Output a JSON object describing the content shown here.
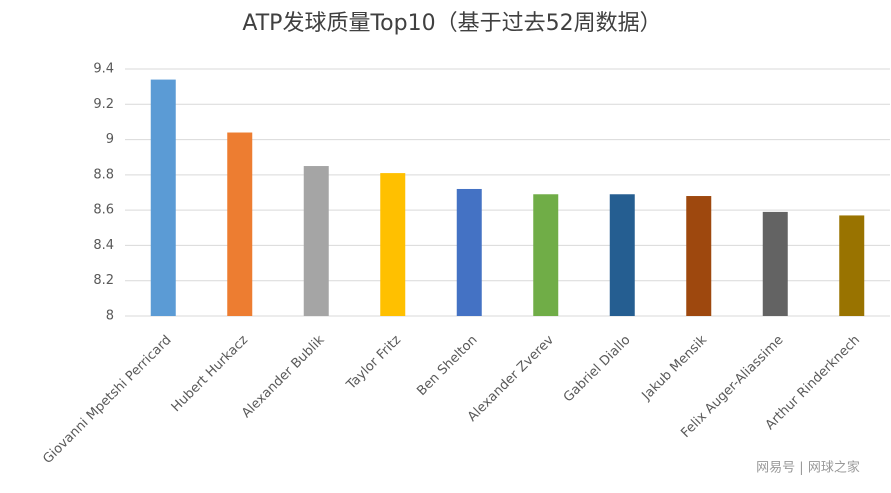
{
  "chart_data": {
    "type": "bar",
    "title": "ATP发球质量Top10（基于过去52周数据）",
    "categories": [
      "Giovanni Mpetshi Perricard",
      "Hubert Hurkacz",
      "Alexander Bublik",
      "Taylor Fritz",
      "Ben Shelton",
      "Alexander Zverev",
      "Gabriel Diallo",
      "Jakub Mensik",
      "Felix Auger-Aliassime",
      "Arthur Rinderknech"
    ],
    "values": [
      9.34,
      9.04,
      8.85,
      8.81,
      8.72,
      8.69,
      8.69,
      8.68,
      8.59,
      8.57
    ],
    "colors": [
      "#5b9bd5",
      "#ed7d31",
      "#a5a5a5",
      "#ffc000",
      "#4472c4",
      "#70ad47",
      "#255e91",
      "#9e480e",
      "#636363",
      "#997300"
    ],
    "ylim": [
      8,
      9.4
    ],
    "yticks": [
      8,
      8.2,
      8.4,
      8.6,
      8.8,
      9,
      9.2,
      9.4
    ],
    "grid": true,
    "watermark": "网易号 | 网球之家"
  }
}
